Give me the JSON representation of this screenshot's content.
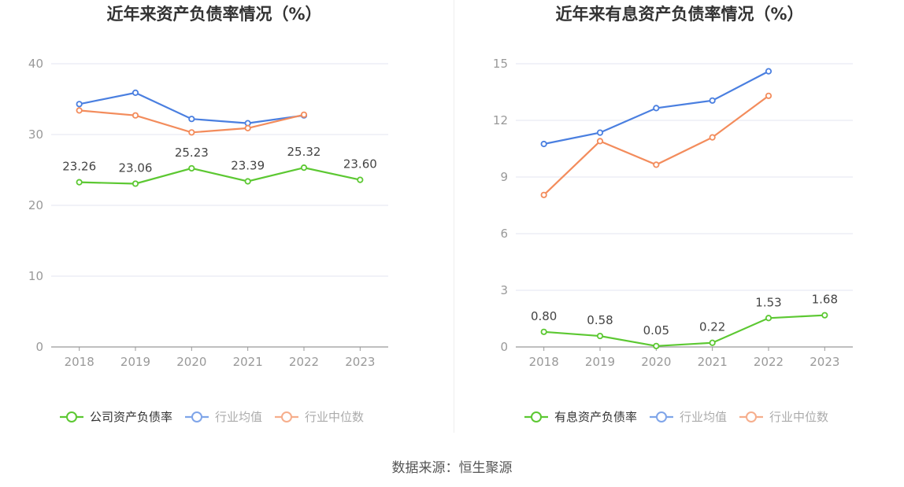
{
  "source_text": "数据来源：恒生聚源",
  "colors": {
    "company": "#5cc832",
    "industry_avg": "#4a7fe0",
    "industry_median": "#f38c5c",
    "grid": "#e3e6f0",
    "axis": "#999999",
    "tick_text": "#999999",
    "label_text": "#444444"
  },
  "chart_data": [
    {
      "type": "line",
      "title": "近年来资产负债率情况（%）",
      "categories": [
        "2018",
        "2019",
        "2020",
        "2021",
        "2022",
        "2023"
      ],
      "ylim": [
        0,
        40
      ],
      "yticks": [
        0,
        10,
        20,
        30,
        40
      ],
      "grid": true,
      "legend_position": "bottom",
      "series": [
        {
          "name": "公司资产负债率",
          "color_key": "company",
          "values": [
            23.26,
            23.06,
            25.23,
            23.39,
            25.32,
            23.6
          ],
          "labels": [
            "23.26",
            "23.06",
            "25.23",
            "23.39",
            "25.32",
            "23.60"
          ]
        },
        {
          "name": "行业均值",
          "color_key": "industry_avg",
          "values": [
            34.3,
            35.9,
            32.2,
            31.6,
            32.7,
            null
          ]
        },
        {
          "name": "行业中位数",
          "color_key": "industry_median",
          "values": [
            33.4,
            32.7,
            30.3,
            30.9,
            32.8,
            null
          ]
        }
      ]
    },
    {
      "type": "line",
      "title": "近年来有息资产负债率情况（%）",
      "categories": [
        "2018",
        "2019",
        "2020",
        "2021",
        "2022",
        "2023"
      ],
      "ylim": [
        0,
        15
      ],
      "yticks": [
        0,
        3,
        6,
        9,
        12,
        15
      ],
      "grid": true,
      "legend_position": "bottom",
      "series": [
        {
          "name": "有息资产负债率",
          "color_key": "company",
          "values": [
            0.8,
            0.58,
            0.05,
            0.22,
            1.53,
            1.68
          ],
          "labels": [
            "0.80",
            "0.58",
            "0.05",
            "0.22",
            "1.53",
            "1.68"
          ]
        },
        {
          "name": "行业均值",
          "color_key": "industry_avg",
          "values": [
            10.75,
            11.35,
            12.65,
            13.05,
            14.6,
            null
          ]
        },
        {
          "name": "行业中位数",
          "color_key": "industry_median",
          "values": [
            8.05,
            10.9,
            9.65,
            11.1,
            13.3,
            null
          ]
        }
      ]
    }
  ]
}
